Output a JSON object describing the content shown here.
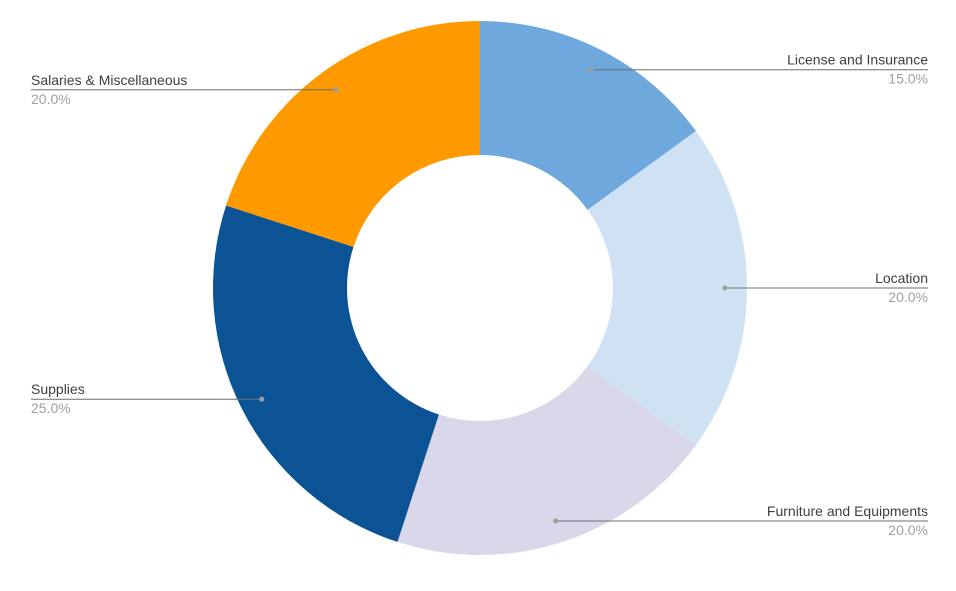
{
  "chart_data": {
    "type": "pie",
    "donut": true,
    "title": "",
    "legend": "labels-outside",
    "slices": [
      {
        "label": "License and Insurance",
        "value": 15.0,
        "percent_label": "15.0%",
        "color": "#6fa8dc",
        "side": "right"
      },
      {
        "label": "Location",
        "value": 20.0,
        "percent_label": "20.0%",
        "color": "#cfe2f3",
        "side": "right"
      },
      {
        "label": "Furniture and Equipments",
        "value": 20.0,
        "percent_label": "20.0%",
        "color": "#d9d7ea",
        "side": "right"
      },
      {
        "label": "Supplies",
        "value": 25.0,
        "percent_label": "25.0%",
        "color": "#0b5394",
        "side": "left"
      },
      {
        "label": "Salaries & Miscellaneous",
        "value": 20.0,
        "percent_label": "20.0%",
        "color": "#ff9900",
        "side": "left"
      }
    ]
  }
}
